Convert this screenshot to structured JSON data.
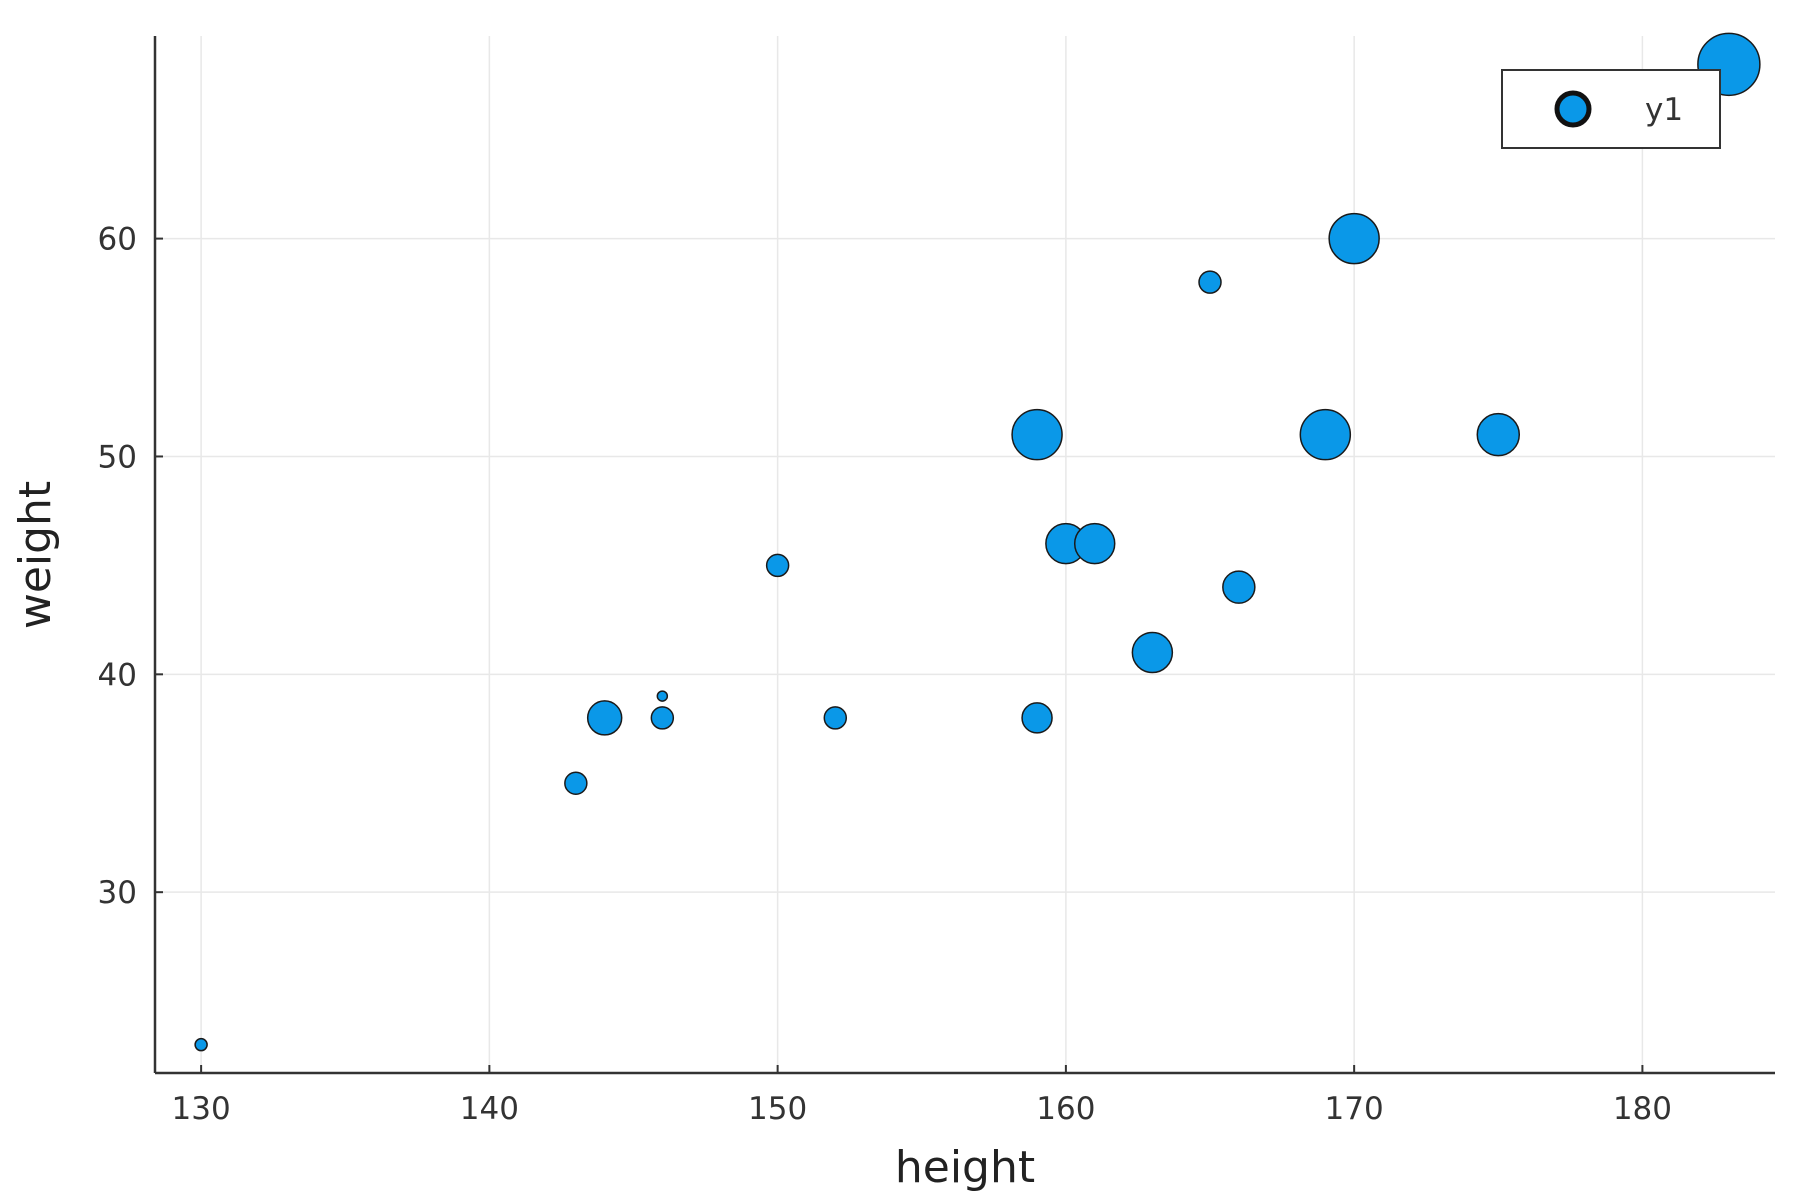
{
  "chart_data": {
    "type": "scatter",
    "title": "",
    "xlabel": "height",
    "ylabel": "weight",
    "xlim": [
      128.4,
      184.6
    ],
    "ylim": [
      21.7,
      69.3
    ],
    "x_ticks": [
      130,
      140,
      150,
      160,
      170,
      180
    ],
    "y_ticks": [
      30,
      40,
      50,
      60
    ],
    "grid": true,
    "legend": {
      "position": "top-right",
      "entries": [
        "y1"
      ]
    },
    "colors": {
      "marker": "#0a98e8",
      "marker_edge": "#1a1a1a",
      "grid": "#e8e8e8",
      "axis": "#333333"
    },
    "series": [
      {
        "name": "y1",
        "points": [
          {
            "x": 130,
            "y": 23,
            "size": 6
          },
          {
            "x": 143,
            "y": 35,
            "size": 11
          },
          {
            "x": 144,
            "y": 38,
            "size": 17
          },
          {
            "x": 146,
            "y": 38,
            "size": 11
          },
          {
            "x": 146,
            "y": 39,
            "size": 5
          },
          {
            "x": 150,
            "y": 45,
            "size": 11
          },
          {
            "x": 152,
            "y": 38,
            "size": 11
          },
          {
            "x": 159,
            "y": 38,
            "size": 15
          },
          {
            "x": 159,
            "y": 51,
            "size": 25
          },
          {
            "x": 160,
            "y": 46,
            "size": 20
          },
          {
            "x": 161,
            "y": 46,
            "size": 20
          },
          {
            "x": 163,
            "y": 41,
            "size": 20
          },
          {
            "x": 165,
            "y": 58,
            "size": 11
          },
          {
            "x": 166,
            "y": 44,
            "size": 16
          },
          {
            "x": 169,
            "y": 51,
            "size": 25
          },
          {
            "x": 170,
            "y": 60,
            "size": 25
          },
          {
            "x": 175,
            "y": 51,
            "size": 21
          },
          {
            "x": 183,
            "y": 68,
            "size": 31
          }
        ]
      }
    ]
  }
}
